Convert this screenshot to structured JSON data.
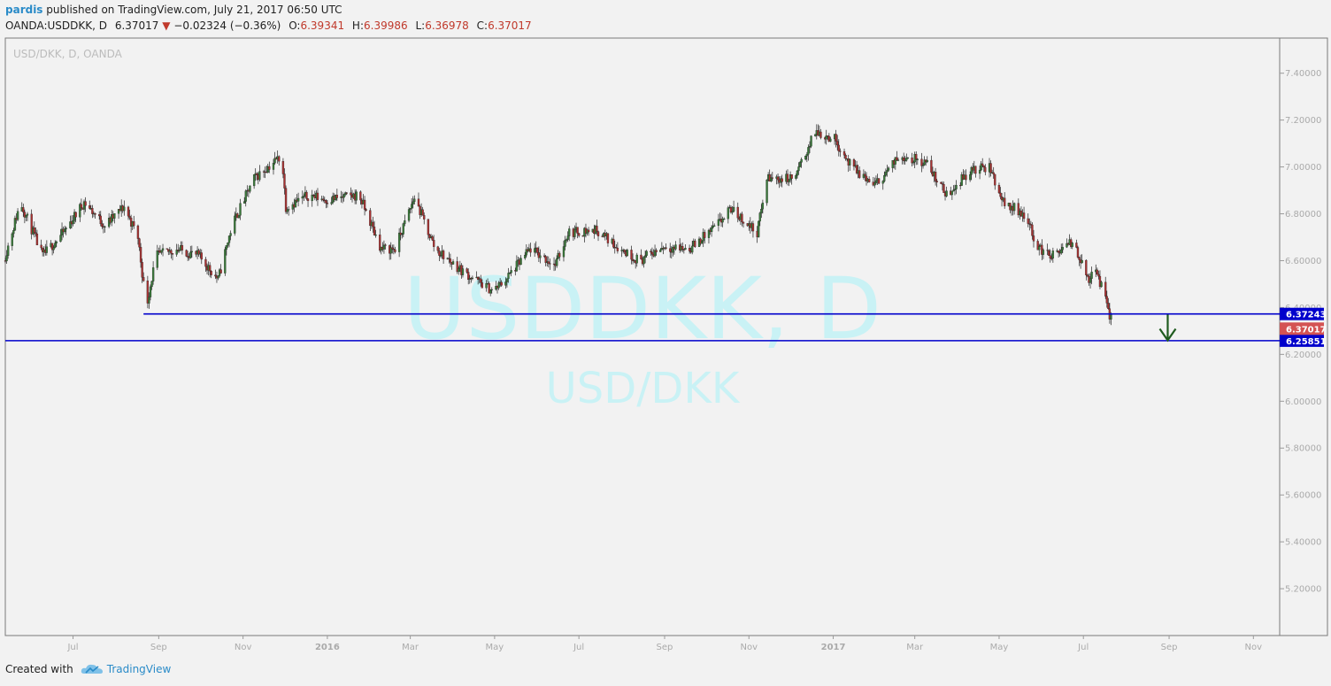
{
  "header": {
    "user": "pardis",
    "published": "published on TradingView.com, July 21, 2017 06:50 UTC",
    "symbol": "OANDA:USDDKK, D",
    "last": "6.37017",
    "change": "−0.02324 (−0.36%)",
    "o_label": "O:",
    "o": "6.39341",
    "h_label": "H:",
    "h": "6.39986",
    "l_label": "L:",
    "l": "6.36978",
    "c_label": "C:",
    "c": "6.37017"
  },
  "footer": {
    "created": "Created with",
    "brand": "TradingView"
  },
  "colors": {
    "up": "#3a7a3a",
    "down": "#a83232",
    "level": "#0000cc",
    "arrow": "#1f5c1f",
    "last": "#d45353"
  },
  "chart_data": {
    "type": "candlestick",
    "title": "USD/DKK, D, OANDA",
    "watermark": "USDDKK, D",
    "watermark_sub": "USD/DKK",
    "ylim": [
      5.0,
      7.55
    ],
    "yticks": [
      "5.20000",
      "5.40000",
      "5.60000",
      "5.80000",
      "6.00000",
      "6.20000",
      "6.40000",
      "6.60000",
      "6.80000",
      "7.00000",
      "7.20000",
      "7.40000"
    ],
    "xticks": [
      "Jul",
      "Sep",
      "Nov",
      "2016",
      "Mar",
      "May",
      "Jul",
      "Sep",
      "Nov",
      "2017",
      "Mar",
      "May",
      "Jul",
      "Sep",
      "Nov"
    ],
    "xrange": [
      "2015-05-13",
      "2017-11-20"
    ],
    "price_path": [
      [
        "2015-05-13",
        6.6
      ],
      [
        "2015-05-25",
        6.85
      ],
      [
        "2015-06-10",
        6.62
      ],
      [
        "2015-06-25",
        6.72
      ],
      [
        "2015-07-10",
        6.85
      ],
      [
        "2015-07-25",
        6.75
      ],
      [
        "2015-08-08",
        6.83
      ],
      [
        "2015-08-18",
        6.7
      ],
      [
        "2015-08-24",
        6.4
      ],
      [
        "2015-08-31",
        6.62
      ],
      [
        "2015-09-15",
        6.65
      ],
      [
        "2015-10-01",
        6.62
      ],
      [
        "2015-10-15",
        6.52
      ],
      [
        "2015-10-25",
        6.75
      ],
      [
        "2015-11-10",
        6.95
      ],
      [
        "2015-11-30",
        7.05
      ],
      [
        "2015-12-03",
        6.83
      ],
      [
        "2015-12-20",
        6.88
      ],
      [
        "2016-01-01",
        6.86
      ],
      [
        "2016-01-25",
        6.88
      ],
      [
        "2016-02-10",
        6.65
      ],
      [
        "2016-02-20",
        6.65
      ],
      [
        "2016-03-05",
        6.87
      ],
      [
        "2016-03-20",
        6.65
      ],
      [
        "2016-04-10",
        6.55
      ],
      [
        "2016-05-01",
        6.47
      ],
      [
        "2016-05-10",
        6.52
      ],
      [
        "2016-05-28",
        6.65
      ],
      [
        "2016-06-15",
        6.58
      ],
      [
        "2016-06-24",
        6.72
      ],
      [
        "2016-07-15",
        6.73
      ],
      [
        "2016-08-01",
        6.65
      ],
      [
        "2016-08-15",
        6.6
      ],
      [
        "2016-09-01",
        6.66
      ],
      [
        "2016-09-20",
        6.65
      ],
      [
        "2016-10-10",
        6.75
      ],
      [
        "2016-10-20",
        6.82
      ],
      [
        "2016-11-08",
        6.72
      ],
      [
        "2016-11-15",
        6.95
      ],
      [
        "2016-12-05",
        6.95
      ],
      [
        "2016-12-20",
        7.15
      ],
      [
        "2017-01-03",
        7.12
      ],
      [
        "2017-01-15",
        7.0
      ],
      [
        "2017-02-01",
        6.92
      ],
      [
        "2017-02-20",
        7.05
      ],
      [
        "2017-03-10",
        7.02
      ],
      [
        "2017-03-25",
        6.88
      ],
      [
        "2017-04-10",
        6.98
      ],
      [
        "2017-04-25",
        7.0
      ],
      [
        "2017-05-05",
        6.85
      ],
      [
        "2017-05-20",
        6.8
      ],
      [
        "2017-05-31",
        6.65
      ],
      [
        "2017-06-10",
        6.62
      ],
      [
        "2017-06-25",
        6.68
      ],
      [
        "2017-07-05",
        6.52
      ],
      [
        "2017-07-12",
        6.55
      ],
      [
        "2017-07-21",
        6.37
      ]
    ],
    "levels": [
      {
        "label": "6.37243",
        "value": 6.37243,
        "start": "2015-08-21"
      },
      {
        "label": "6.25851",
        "value": 6.25851,
        "start": "2015-05-13"
      }
    ],
    "last_price": {
      "label": "6.37017",
      "value": 6.37017
    },
    "arrow": {
      "date": "2017-08-31",
      "from": 6.37,
      "to": 6.26
    }
  }
}
